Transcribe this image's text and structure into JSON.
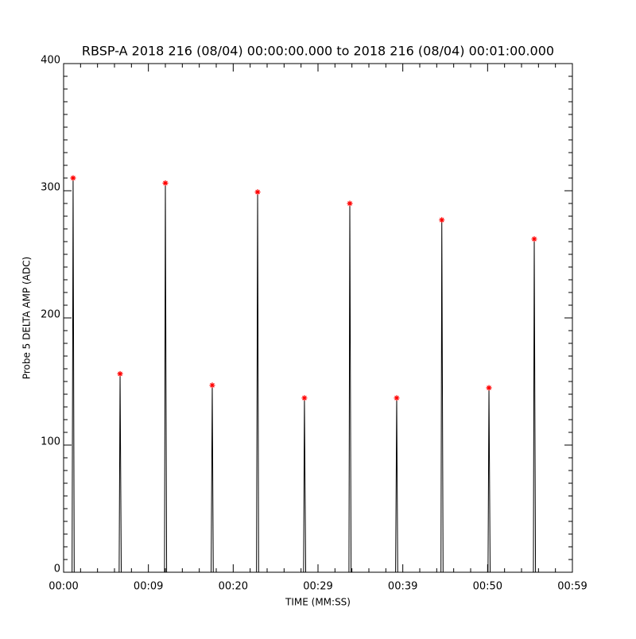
{
  "chart_data": {
    "type": "line",
    "title": "RBSP-A 2018 216 (08/04) 00:00:00.000 to 2018 216 (08/04) 00:01:00.000",
    "x_label": "TIME (MM:SS)",
    "y_label": "Probe 5 DELTA AMP (ADC)",
    "xlim": [
      0,
      60
    ],
    "ylim": [
      0,
      400
    ],
    "xticks": [
      {
        "value": 0,
        "label": "00:00"
      },
      {
        "value": 10,
        "label": "00:09"
      },
      {
        "value": 20,
        "label": "00:20"
      },
      {
        "value": 30,
        "label": "00:29"
      },
      {
        "value": 40,
        "label": "00:39"
      },
      {
        "value": 50,
        "label": "00:50"
      },
      {
        "value": 60,
        "label": "00:59"
      }
    ],
    "yticks": [
      0,
      100,
      200,
      300,
      400
    ],
    "line": {
      "color": "#000000",
      "x": [
        1.0,
        1.12,
        1.25,
        6.55,
        6.66,
        6.8,
        11.9,
        12.0,
        12.15,
        17.4,
        17.53,
        17.65,
        22.75,
        22.88,
        23.0,
        28.3,
        28.4,
        28.55,
        33.65,
        33.75,
        33.9,
        39.15,
        39.28,
        39.4,
        44.5,
        44.6,
        44.75,
        50.05,
        50.16,
        50.3,
        55.4,
        55.5,
        55.65
      ],
      "values": [
        0,
        310,
        0,
        0,
        156,
        0,
        0,
        306,
        0,
        0,
        147,
        0,
        0,
        299,
        0,
        0,
        137,
        0,
        0,
        290,
        0,
        0,
        137,
        0,
        0,
        277,
        0,
        0,
        145,
        0,
        0,
        262,
        0
      ]
    },
    "peaks": {
      "color": "#ff0000",
      "x": [
        1.12,
        6.66,
        12.0,
        17.53,
        22.88,
        28.4,
        33.75,
        39.28,
        44.6,
        50.16,
        55.5
      ],
      "values": [
        310,
        156,
        306,
        147,
        299,
        137,
        290,
        137,
        277,
        145,
        262
      ]
    }
  }
}
